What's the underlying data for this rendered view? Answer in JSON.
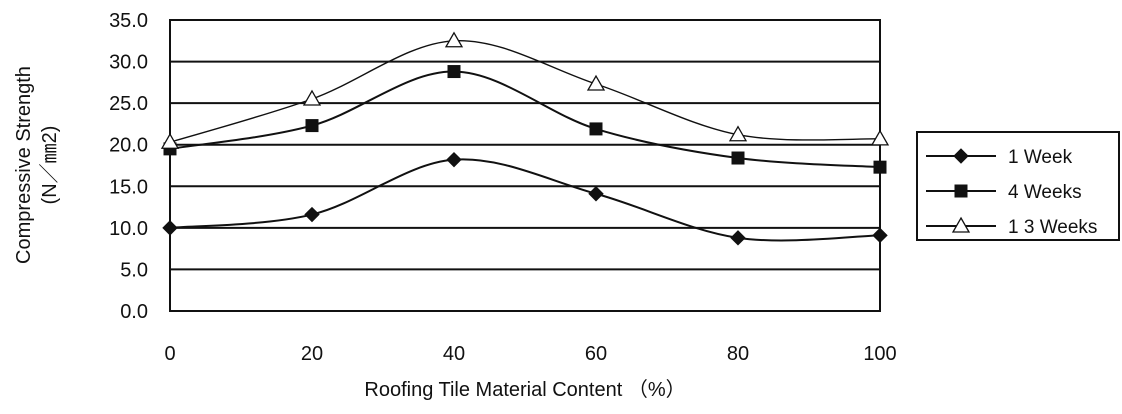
{
  "chart_data": {
    "type": "line",
    "xlabel": "Roofing Tile Material Content （%）",
    "ylabel": "Compressive Strength",
    "ylabel_unit": "(N／㎜2)",
    "x": [
      0,
      20,
      40,
      60,
      80,
      100
    ],
    "x_tick_labels": [
      "0",
      "20",
      "40",
      "60",
      "80",
      "100"
    ],
    "xlim": [
      0,
      100
    ],
    "ylim": [
      0,
      35
    ],
    "y_tick_labels": [
      "0.0",
      "5.0",
      "10.0",
      "15.0",
      "20.0",
      "25.0",
      "30.0",
      "35.0"
    ],
    "grid": "horizontal",
    "legend_position": "right",
    "series": [
      {
        "name": "1 Week",
        "marker": "diamond",
        "values": [
          10.0,
          11.6,
          18.2,
          14.1,
          8.8,
          9.1
        ]
      },
      {
        "name": "4 Weeks",
        "marker": "square",
        "values": [
          19.5,
          22.3,
          28.8,
          21.9,
          18.4,
          17.3
        ]
      },
      {
        "name": "1 3 Weeks",
        "marker": "triangle",
        "values": [
          20.3,
          25.5,
          32.5,
          27.3,
          21.2,
          20.7
        ]
      }
    ],
    "colors": {
      "line": "#111111",
      "grid": "#111111",
      "plot_background": "#ffffff"
    }
  }
}
